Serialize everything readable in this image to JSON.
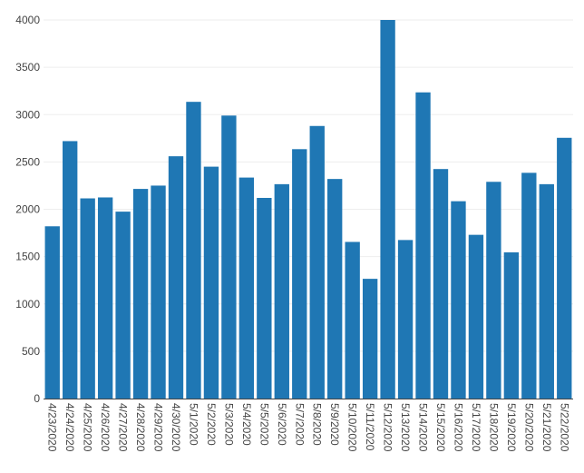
{
  "chart_data": {
    "type": "bar",
    "categories": [
      "4/23/2020",
      "4/24/2020",
      "4/25/2020",
      "4/26/2020",
      "4/27/2020",
      "4/28/2020",
      "4/29/2020",
      "4/30/2020",
      "5/1/2020",
      "5/2/2020",
      "5/3/2020",
      "5/4/2020",
      "5/5/2020",
      "5/6/2020",
      "5/7/2020",
      "5/8/2020",
      "5/9/2020",
      "5/10/2020",
      "5/11/2020",
      "5/12/2020",
      "5/13/2020",
      "5/14/2020",
      "5/15/2020",
      "5/16/2020",
      "5/17/2020",
      "5/18/2020",
      "5/19/2020",
      "5/20/2020",
      "5/21/2020",
      "5/22/2020"
    ],
    "values": [
      1820,
      2720,
      2115,
      2125,
      1975,
      2215,
      2250,
      2560,
      3135,
      2450,
      2990,
      2335,
      2120,
      2265,
      2635,
      2880,
      2320,
      1655,
      1265,
      4010,
      1675,
      3235,
      2425,
      2085,
      1730,
      2290,
      1545,
      2385,
      2265,
      2755
    ],
    "title": "",
    "xlabel": "",
    "ylabel": "",
    "ylim": [
      0,
      4000
    ],
    "yticks": [
      0,
      500,
      1000,
      1500,
      2000,
      2500,
      3000,
      3500,
      4000
    ],
    "grid": true,
    "bar_color": "#1f77b4",
    "grid_color": "#eeeeee",
    "axis_color": "#444444"
  }
}
